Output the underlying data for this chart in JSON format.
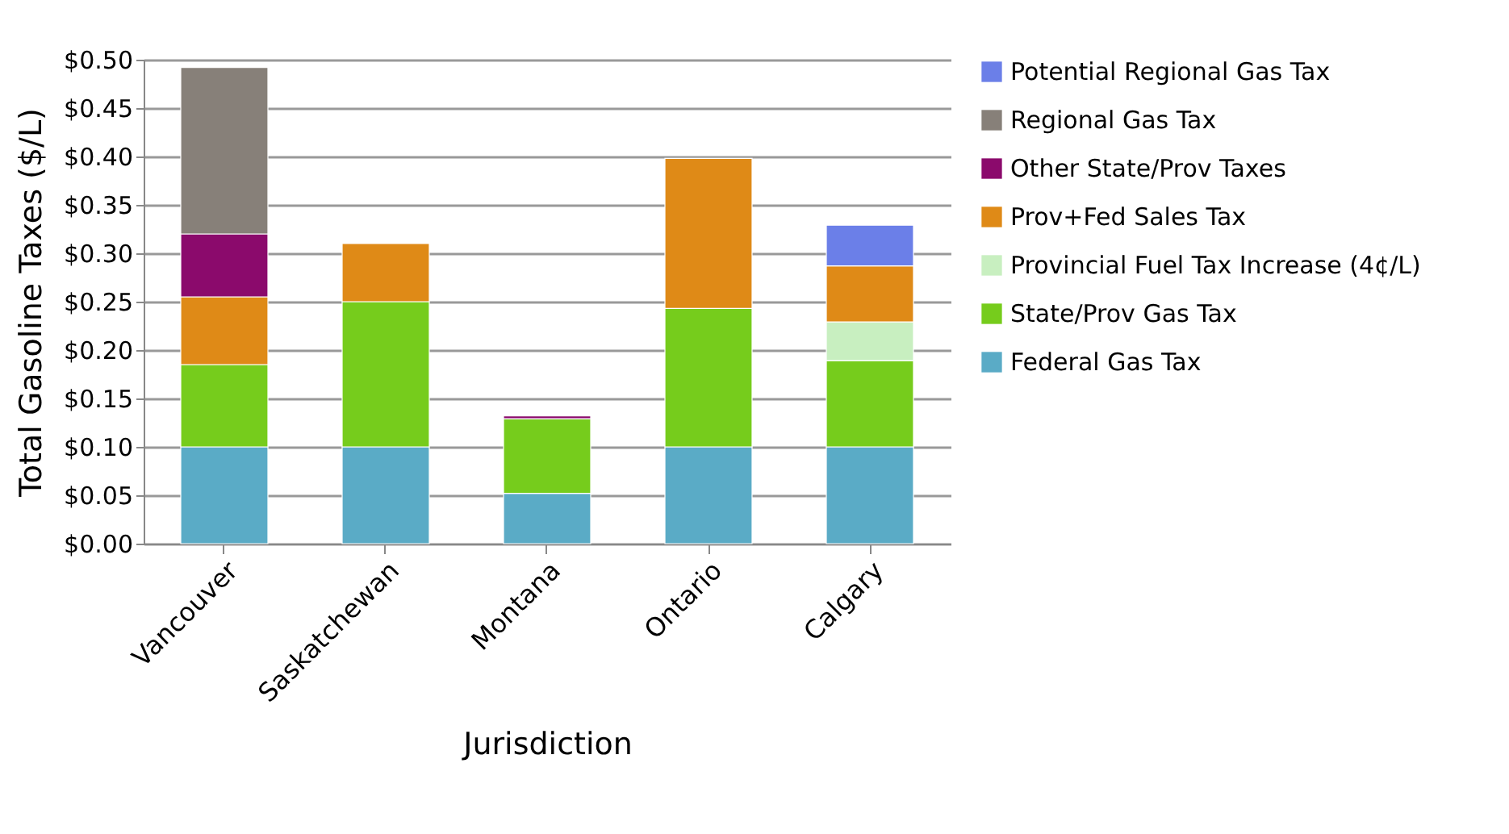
{
  "chart_data": {
    "type": "bar",
    "stacked": true,
    "xlabel": "Jurisdiction",
    "ylabel": "Total Gasoline Taxes ($/L)",
    "categories": [
      "Vancouver",
      "Saskatchewan",
      "Montana",
      "Ontario",
      "Calgary"
    ],
    "series": [
      {
        "name": "Federal Gas Tax",
        "color": "#5aabc6",
        "values": [
          0.1,
          0.1,
          0.052,
          0.1,
          0.1
        ]
      },
      {
        "name": "State/Prov Gas Tax",
        "color": "#76cc1c",
        "values": [
          0.085,
          0.15,
          0.077,
          0.143,
          0.089
        ]
      },
      {
        "name": "Provincial Fuel Tax Increase (4¢/L)",
        "color": "#c8efc0",
        "values": [
          null,
          null,
          null,
          null,
          0.04
        ]
      },
      {
        "name": "Prov+Fed Sales Tax",
        "color": "#df8a17",
        "values": [
          0.07,
          0.06,
          null,
          0.155,
          0.058
        ]
      },
      {
        "name": "Other State/Prov Taxes",
        "color": "#8b0a6c",
        "values": [
          0.065,
          null,
          0.003,
          null,
          null
        ]
      },
      {
        "name": "Regional Gas Tax",
        "color": "#878079",
        "values": [
          0.172,
          null,
          null,
          null,
          null
        ]
      },
      {
        "name": "Potential Regional Gas Tax",
        "color": "#6b7fe8",
        "values": [
          null,
          null,
          null,
          null,
          0.042
        ]
      }
    ],
    "ylim": [
      0,
      0.5
    ],
    "yticks": [
      {
        "value": 0,
        "label": "$0.00"
      },
      {
        "value": 0.05,
        "label": "$0.05"
      },
      {
        "value": 0.1,
        "label": "$0.10"
      },
      {
        "value": 0.15,
        "label": "$0.15"
      },
      {
        "value": 0.2,
        "label": "$0.20"
      },
      {
        "value": 0.25,
        "label": "$0.25"
      },
      {
        "value": 0.3,
        "label": "$0.30"
      },
      {
        "value": 0.35,
        "label": "$0.35"
      },
      {
        "value": 0.4,
        "label": "$0.40"
      },
      {
        "value": 0.45,
        "label": "$0.45"
      },
      {
        "value": 0.5,
        "label": "$0.50"
      }
    ],
    "grid": "y",
    "legend": "right"
  }
}
